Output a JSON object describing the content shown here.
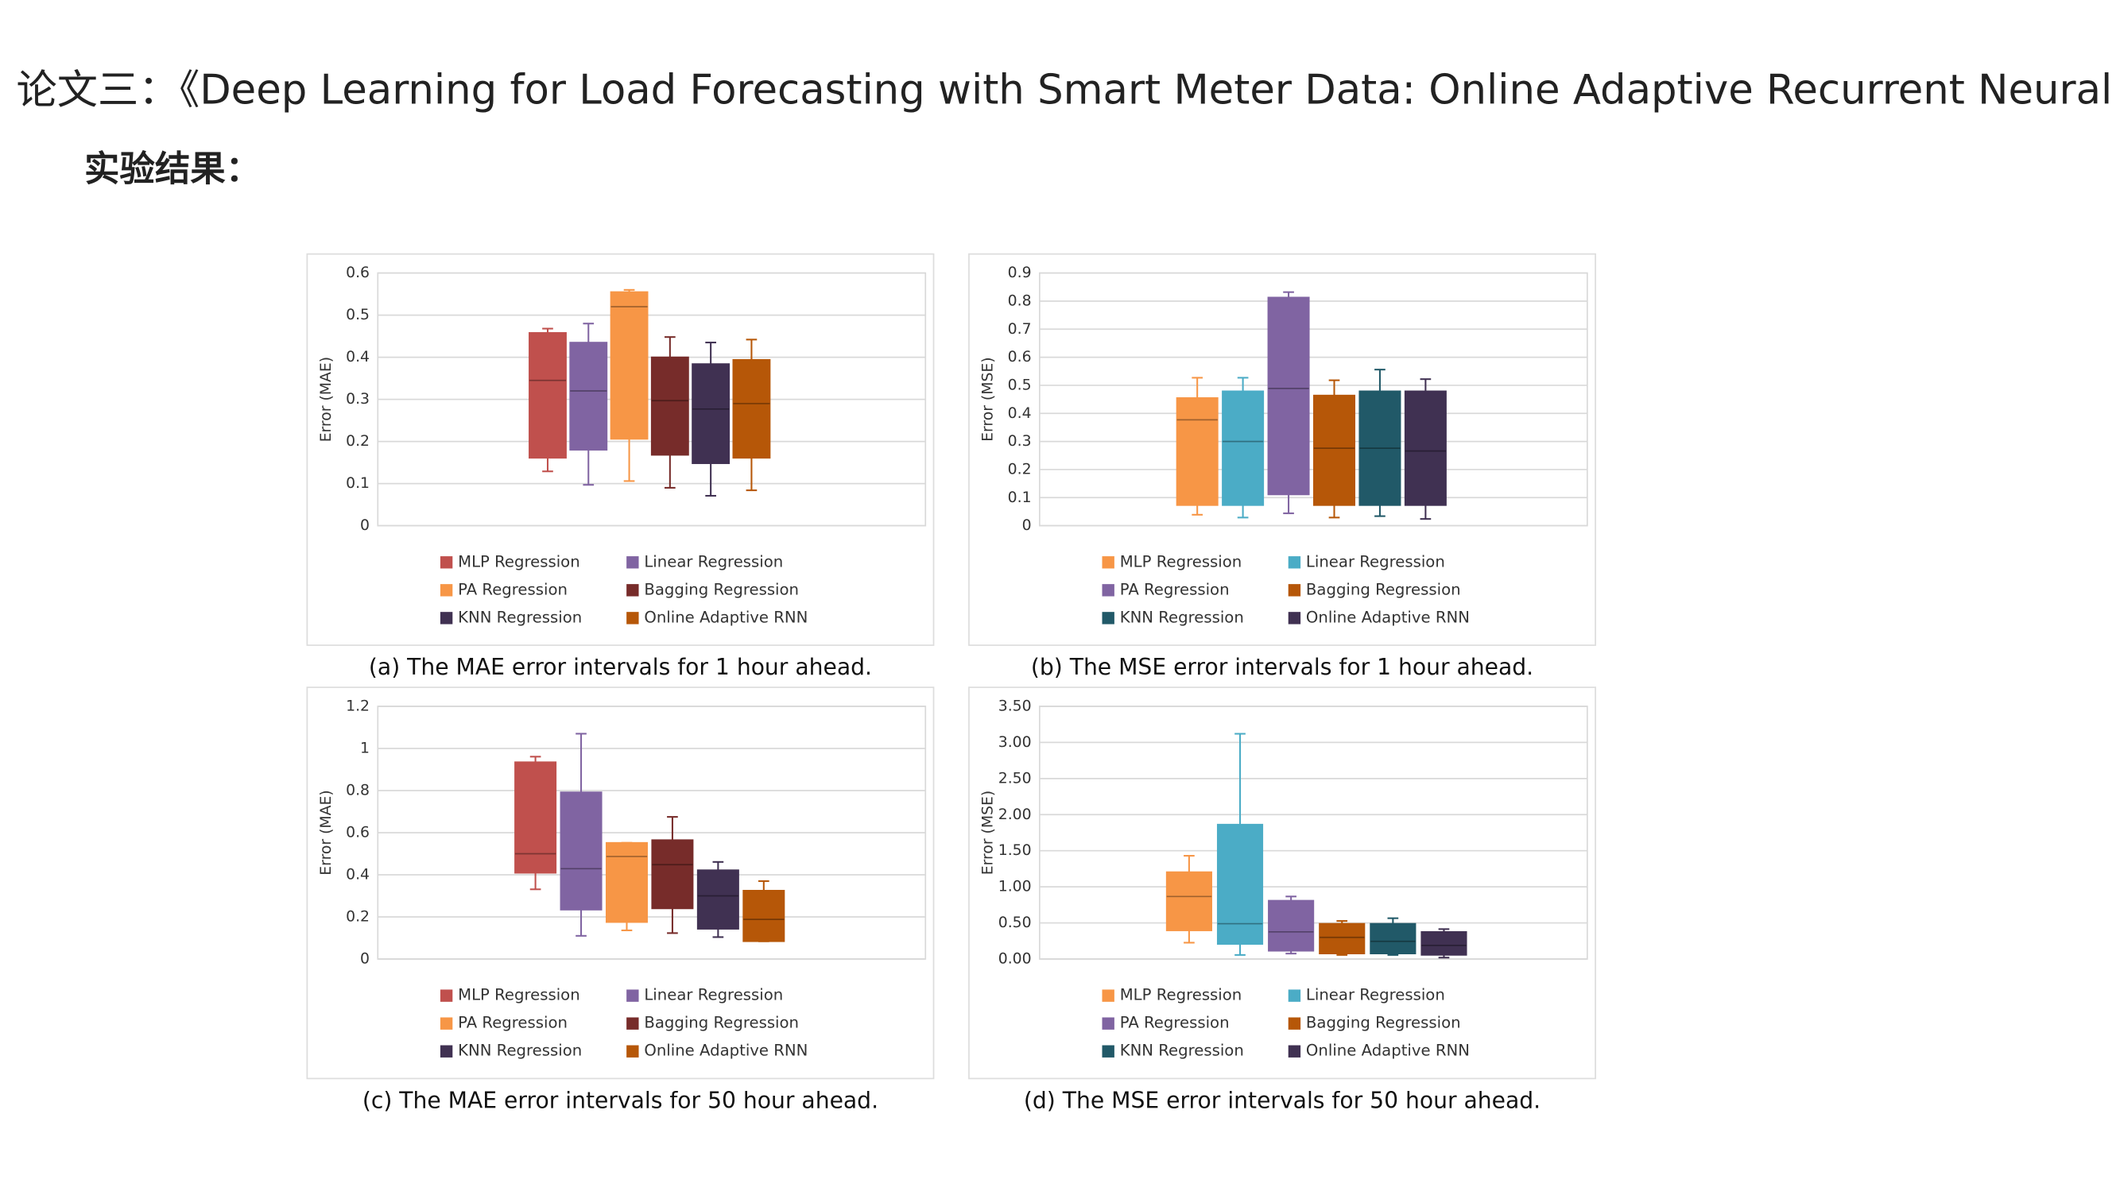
{
  "title": "论文三：《Deep Learning for Load Forecasting with Smart Meter Data: Online Adaptive Recurrent Neural Network》",
  "heading": "实验结果：",
  "chart_data": [
    {
      "type": "box",
      "caption": "(a) The MAE error intervals for 1 hour ahead.",
      "ylabel": "Error (MAE)",
      "ylim": [
        0,
        0.6
      ],
      "yticks": [
        0,
        0.1,
        0.2,
        0.3,
        0.4,
        0.5,
        0.6
      ],
      "grid": true,
      "series": [
        {
          "name": "MLP Regression",
          "color": "#c0504d",
          "min": 0.129,
          "q1": 0.161,
          "median": 0.345,
          "q3": 0.458,
          "max": 0.468
        },
        {
          "name": "Linear Regression",
          "color": "#8064a2",
          "min": 0.097,
          "q1": 0.18,
          "median": 0.32,
          "q3": 0.435,
          "max": 0.48
        },
        {
          "name": "PA Regression",
          "color": "#f79646",
          "min": 0.106,
          "q1": 0.206,
          "median": 0.52,
          "q3": 0.555,
          "max": 0.56
        },
        {
          "name": "Bagging Regression",
          "color": "#772c2a",
          "min": 0.09,
          "q1": 0.168,
          "median": 0.297,
          "q3": 0.4,
          "max": 0.448
        },
        {
          "name": "KNN Regression",
          "color": "#403152",
          "min": 0.071,
          "q1": 0.148,
          "median": 0.277,
          "q3": 0.384,
          "max": 0.435
        },
        {
          "name": "Online Adaptive RNN",
          "color": "#b65708",
          "min": 0.084,
          "q1": 0.161,
          "median": 0.29,
          "q3": 0.394,
          "max": 0.442
        }
      ]
    },
    {
      "type": "box",
      "caption": "(b) The MSE error intervals for 1 hour ahead.",
      "ylabel": "Error (MSE)",
      "ylim": [
        0,
        0.9
      ],
      "yticks": [
        0,
        0.1,
        0.2,
        0.3,
        0.4,
        0.5,
        0.6,
        0.7,
        0.8,
        0.9
      ],
      "grid": true,
      "series": [
        {
          "name": "MLP Regression",
          "color": "#f79646",
          "min": 0.039,
          "q1": 0.073,
          "median": 0.377,
          "q3": 0.455,
          "max": 0.527
        },
        {
          "name": "Linear Regression",
          "color": "#4bacc6",
          "min": 0.029,
          "q1": 0.073,
          "median": 0.3,
          "q3": 0.479,
          "max": 0.527
        },
        {
          "name": "PA Regression",
          "color": "#8064a2",
          "min": 0.044,
          "q1": 0.111,
          "median": 0.489,
          "q3": 0.813,
          "max": 0.832
        },
        {
          "name": "Bagging Regression",
          "color": "#b65708",
          "min": 0.029,
          "q1": 0.073,
          "median": 0.276,
          "q3": 0.464,
          "max": 0.518
        },
        {
          "name": "KNN Regression",
          "color": "#215968",
          "min": 0.034,
          "q1": 0.073,
          "median": 0.276,
          "q3": 0.479,
          "max": 0.556
        },
        {
          "name": "Online Adaptive RNN",
          "color": "#403152",
          "min": 0.024,
          "q1": 0.073,
          "median": 0.266,
          "q3": 0.479,
          "max": 0.522
        }
      ]
    },
    {
      "type": "box",
      "caption": "(c) The MAE error intervals for 50 hour ahead.",
      "ylabel": "Error (MAE)",
      "ylim": [
        0,
        1.2
      ],
      "yticks": [
        0,
        0.2,
        0.4,
        0.6,
        0.8,
        1,
        1.2
      ],
      "grid": true,
      "series": [
        {
          "name": "MLP Regression",
          "color": "#c0504d",
          "min": 0.331,
          "q1": 0.409,
          "median": 0.5,
          "q3": 0.935,
          "max": 0.961
        },
        {
          "name": "Linear Regression",
          "color": "#8064a2",
          "min": 0.11,
          "q1": 0.234,
          "median": 0.429,
          "q3": 0.792,
          "max": 1.07
        },
        {
          "name": "PA Regression",
          "color": "#f79646",
          "min": 0.136,
          "q1": 0.175,
          "median": 0.487,
          "q3": 0.552,
          "max": 0.552
        },
        {
          "name": "Bagging Regression",
          "color": "#772c2a",
          "min": 0.123,
          "q1": 0.24,
          "median": 0.448,
          "q3": 0.565,
          "max": 0.675
        },
        {
          "name": "KNN Regression",
          "color": "#403152",
          "min": 0.104,
          "q1": 0.143,
          "median": 0.3,
          "q3": 0.422,
          "max": 0.461
        },
        {
          "name": "Online Adaptive RNN",
          "color": "#b65708",
          "min": 0.084,
          "q1": 0.084,
          "median": 0.188,
          "q3": 0.325,
          "max": 0.37
        }
      ]
    },
    {
      "type": "box",
      "caption": "(d) The MSE error intervals for 50 hour ahead.",
      "ylabel": "Error (MSE)",
      "ylim": [
        0,
        3.5
      ],
      "yticks": [
        {
          "value": 0,
          "label": "0.00"
        },
        {
          "value": 0.5,
          "label": "0.50"
        },
        {
          "value": 1,
          "label": "1.00"
        },
        {
          "value": 1.5,
          "label": "1.50"
        },
        {
          "value": 2,
          "label": "2.00"
        },
        {
          "value": 2.5,
          "label": "2.50"
        },
        {
          "value": 3,
          "label": "3.00"
        },
        {
          "value": 3.5,
          "label": "3.50"
        }
      ],
      "grid": true,
      "series": [
        {
          "name": "MLP Regression",
          "color": "#f79646",
          "min": 0.226,
          "q1": 0.395,
          "median": 0.866,
          "q3": 1.204,
          "max": 1.43
        },
        {
          "name": "Linear Regression",
          "color": "#4bacc6",
          "min": 0.056,
          "q1": 0.207,
          "median": 0.489,
          "q3": 1.863,
          "max": 3.12
        },
        {
          "name": "PA Regression",
          "color": "#8064a2",
          "min": 0.075,
          "q1": 0.113,
          "median": 0.376,
          "q3": 0.809,
          "max": 0.866
        },
        {
          "name": "Bagging Regression",
          "color": "#b65708",
          "min": 0.056,
          "q1": 0.075,
          "median": 0.3,
          "q3": 0.489,
          "max": 0.527
        },
        {
          "name": "KNN Regression",
          "color": "#215968",
          "min": 0.056,
          "q1": 0.075,
          "median": 0.245,
          "q3": 0.489,
          "max": 0.565
        },
        {
          "name": "Online Adaptive RNN",
          "color": "#403152",
          "min": 0.019,
          "q1": 0.056,
          "median": 0.188,
          "q3": 0.376,
          "max": 0.414
        }
      ]
    }
  ]
}
